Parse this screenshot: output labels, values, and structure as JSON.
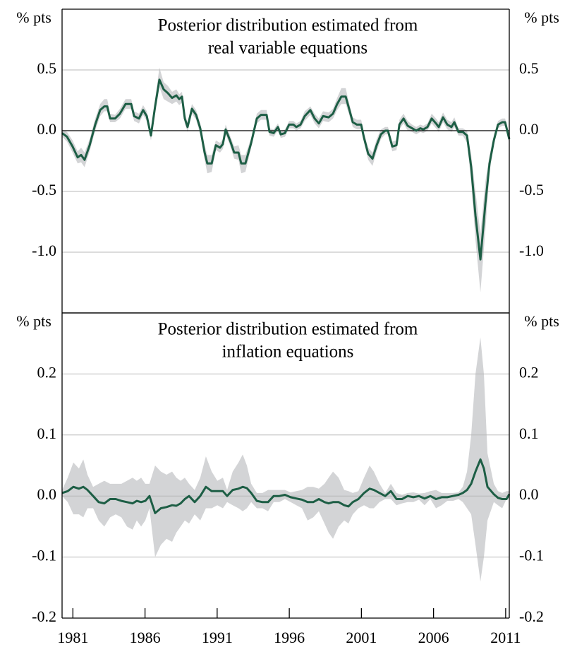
{
  "chart_data": [
    {
      "type": "line",
      "title_lines": [
        "Posterior distribution estimated from",
        "real variable equations"
      ],
      "ylabel": "% pts",
      "xlim": [
        1980.25,
        2011.25
      ],
      "ylim": [
        -1.5,
        1.0
      ],
      "yticks": [
        {
          "value": -1,
          "label": "-1.0"
        },
        -0.5,
        {
          "value": 0,
          "label": "0.0"
        },
        0.5
      ],
      "grid": true,
      "zero_line": true,
      "x": [
        1980.25,
        1980.59,
        1980.98,
        1981.33,
        1981.57,
        1981.81,
        1982.16,
        1982.55,
        1982.89,
        1983.18,
        1983.38,
        1983.58,
        1983.92,
        1984.26,
        1984.65,
        1985.04,
        1985.24,
        1985.58,
        1985.87,
        1986.12,
        1986.41,
        1986.7,
        1987.0,
        1987.29,
        1987.58,
        1987.88,
        1988.17,
        1988.37,
        1988.56,
        1988.76,
        1988.95,
        1989.25,
        1989.54,
        1989.83,
        1990.13,
        1990.32,
        1990.62,
        1990.91,
        1991.2,
        1991.4,
        1991.59,
        1991.89,
        1992.18,
        1992.48,
        1992.67,
        1992.96,
        1993.36,
        1993.75,
        1994.04,
        1994.43,
        1994.63,
        1994.92,
        1995.21,
        1995.41,
        1995.7,
        1995.99,
        1996.29,
        1996.49,
        1996.78,
        1997.07,
        1997.46,
        1997.76,
        1998.05,
        1998.34,
        1998.73,
        1999.03,
        1999.32,
        1999.61,
        1999.91,
        2000.1,
        2000.4,
        2000.69,
        2000.98,
        2001.18,
        2001.47,
        2001.77,
        2002.06,
        2002.35,
        2002.65,
        2002.84,
        2003.14,
        2003.43,
        2003.63,
        2003.92,
        2004.21,
        2004.51,
        2004.8,
        2005.09,
        2005.29,
        2005.58,
        2005.87,
        2006.17,
        2006.36,
        2006.66,
        2006.95,
        2007.24,
        2007.44,
        2007.73,
        2008.03,
        2008.32,
        2008.61,
        2008.91,
        2009.25,
        2009.59,
        2009.88,
        2010.18,
        2010.47,
        2010.76,
        2010.96,
        2011.25
      ],
      "series": [
        {
          "color": "#1d5e45",
          "values": [
            -0.02,
            -0.05,
            -0.13,
            -0.22,
            -0.2,
            -0.24,
            -0.12,
            0.05,
            0.17,
            0.2,
            0.2,
            0.1,
            0.1,
            0.14,
            0.22,
            0.22,
            0.12,
            0.1,
            0.17,
            0.12,
            -0.04,
            0.2,
            0.42,
            0.34,
            0.31,
            0.27,
            0.29,
            0.26,
            0.28,
            0.1,
            0.03,
            0.18,
            0.13,
            0.02,
            -0.18,
            -0.27,
            -0.27,
            -0.12,
            -0.14,
            -0.11,
            0.01,
            -0.08,
            -0.18,
            -0.18,
            -0.27,
            -0.27,
            -0.1,
            0.1,
            0.13,
            0.13,
            -0.01,
            -0.02,
            0.03,
            -0.03,
            -0.02,
            0.05,
            0.05,
            0.03,
            0.05,
            0.12,
            0.17,
            0.1,
            0.06,
            0.12,
            0.11,
            0.14,
            0.22,
            0.28,
            0.28,
            0.2,
            0.07,
            0.05,
            0.05,
            -0.06,
            -0.19,
            -0.23,
            -0.12,
            -0.03,
            0.0,
            0.0,
            -0.13,
            -0.12,
            0.05,
            0.1,
            0.04,
            0.02,
            0.0,
            0.02,
            0.01,
            0.03,
            0.1,
            0.06,
            0.03,
            0.11,
            0.05,
            0.03,
            0.07,
            -0.01,
            -0.01,
            -0.04,
            -0.3,
            -0.7,
            -1.06,
            -0.6,
            -0.27,
            -0.08,
            0.05,
            0.07,
            0.07,
            -0.07
          ],
          "band": {
            "color": "#d3d4d6",
            "lower": [
              -0.05,
              -0.09,
              -0.18,
              -0.27,
              -0.26,
              -0.3,
              -0.17,
              0.0,
              0.12,
              0.16,
              0.16,
              0.07,
              0.07,
              0.1,
              0.18,
              0.18,
              0.08,
              0.06,
              0.13,
              0.08,
              -0.08,
              0.14,
              0.36,
              0.26,
              0.24,
              0.22,
              0.24,
              0.21,
              0.23,
              0.06,
              -0.01,
              0.14,
              0.09,
              -0.03,
              -0.24,
              -0.35,
              -0.34,
              -0.16,
              -0.18,
              -0.15,
              -0.03,
              -0.12,
              -0.23,
              -0.24,
              -0.35,
              -0.34,
              -0.14,
              0.06,
              0.09,
              0.09,
              -0.04,
              -0.05,
              0.0,
              -0.06,
              -0.05,
              0.02,
              0.02,
              0.0,
              0.02,
              0.08,
              0.13,
              0.06,
              0.02,
              0.08,
              0.07,
              0.1,
              0.17,
              0.22,
              0.22,
              0.15,
              0.03,
              0.01,
              0.01,
              -0.1,
              -0.24,
              -0.29,
              -0.17,
              -0.07,
              -0.03,
              -0.03,
              -0.17,
              -0.16,
              0.01,
              0.06,
              0.0,
              -0.01,
              -0.03,
              -0.01,
              -0.02,
              0.0,
              0.06,
              0.02,
              -0.01,
              0.07,
              0.01,
              -0.01,
              0.03,
              -0.04,
              -0.04,
              -0.1,
              -0.42,
              -0.9,
              -1.33,
              -0.82,
              -0.34,
              -0.12,
              0.02,
              0.04,
              0.04,
              -0.1
            ],
            "upper": [
              0.01,
              -0.01,
              -0.08,
              -0.17,
              -0.14,
              -0.18,
              -0.07,
              0.1,
              0.22,
              0.26,
              0.26,
              0.14,
              0.13,
              0.18,
              0.26,
              0.26,
              0.16,
              0.14,
              0.21,
              0.16,
              0.0,
              0.26,
              0.52,
              0.4,
              0.37,
              0.32,
              0.34,
              0.3,
              0.32,
              0.14,
              0.07,
              0.22,
              0.17,
              0.06,
              -0.12,
              -0.2,
              -0.2,
              -0.08,
              -0.1,
              -0.07,
              0.05,
              -0.04,
              -0.13,
              -0.12,
              -0.2,
              -0.2,
              -0.06,
              0.14,
              0.17,
              0.17,
              0.02,
              0.01,
              0.06,
              0.0,
              0.01,
              0.08,
              0.08,
              0.06,
              0.08,
              0.16,
              0.2,
              0.14,
              0.1,
              0.16,
              0.15,
              0.18,
              0.27,
              0.35,
              0.35,
              0.25,
              0.11,
              0.09,
              0.09,
              -0.02,
              -0.14,
              -0.18,
              -0.07,
              0.01,
              0.03,
              0.03,
              -0.09,
              -0.08,
              0.09,
              0.14,
              0.08,
              0.05,
              0.03,
              0.05,
              0.04,
              0.06,
              0.14,
              0.1,
              0.07,
              0.15,
              0.09,
              0.07,
              0.11,
              0.02,
              0.02,
              0.0,
              -0.2,
              -0.5,
              -0.85,
              -0.42,
              -0.2,
              -0.04,
              0.08,
              0.1,
              0.1,
              -0.04
            ]
          }
        }
      ]
    },
    {
      "type": "line",
      "title_lines": [
        "Posterior distribution estimated from",
        "inflation equations"
      ],
      "ylabel": "% pts",
      "xlim": [
        1980.25,
        2011.25
      ],
      "ylim": [
        -0.2,
        0.3
      ],
      "yticks": [
        -0.2,
        -0.1,
        {
          "value": 0,
          "label": "0.0"
        },
        0.1,
        0.2
      ],
      "xticks": [
        1981,
        1986,
        1991,
        1996,
        2001,
        2006,
        2011
      ],
      "grid": true,
      "zero_line": false,
      "x": [
        1980.25,
        1980.64,
        1981.03,
        1981.42,
        1981.72,
        1982.01,
        1982.4,
        1982.79,
        1983.18,
        1983.58,
        1983.97,
        1984.36,
        1984.75,
        1985.14,
        1985.43,
        1985.73,
        1986.02,
        1986.31,
        1986.7,
        1987.1,
        1987.49,
        1987.88,
        1988.17,
        1988.47,
        1988.76,
        1989.05,
        1989.44,
        1989.83,
        1990.22,
        1990.62,
        1991.01,
        1991.4,
        1991.69,
        1992.08,
        1992.48,
        1992.77,
        1993.06,
        1993.36,
        1993.75,
        1994.14,
        1994.53,
        1994.92,
        1995.31,
        1995.7,
        1996.09,
        1996.49,
        1996.88,
        1997.27,
        1997.66,
        1998.05,
        1998.44,
        1998.73,
        1999.03,
        1999.42,
        1999.81,
        2000.1,
        2000.4,
        2000.79,
        2001.18,
        2001.57,
        2001.86,
        2002.26,
        2002.65,
        2003.04,
        2003.43,
        2003.82,
        2004.21,
        2004.6,
        2004.99,
        2005.38,
        2005.78,
        2006.17,
        2006.56,
        2006.95,
        2007.34,
        2007.73,
        2008.03,
        2008.32,
        2008.61,
        2008.91,
        2009.25,
        2009.49,
        2009.74,
        2010.18,
        2010.47,
        2010.76,
        2011.06,
        2011.25
      ],
      "series": [
        {
          "color": "#1d5e45",
          "values": [
            0.005,
            0.008,
            0.015,
            0.012,
            0.015,
            0.01,
            0.0,
            -0.01,
            -0.012,
            -0.005,
            -0.005,
            -0.008,
            -0.01,
            -0.012,
            -0.008,
            -0.01,
            -0.008,
            0.0,
            -0.028,
            -0.02,
            -0.018,
            -0.015,
            -0.016,
            -0.012,
            -0.005,
            0.0,
            -0.01,
            0.0,
            0.015,
            0.008,
            0.008,
            0.008,
            0.0,
            0.01,
            0.012,
            0.015,
            0.013,
            0.005,
            -0.008,
            -0.01,
            -0.01,
            0.0,
            0.0,
            0.002,
            -0.002,
            -0.004,
            -0.006,
            -0.01,
            -0.01,
            -0.005,
            -0.01,
            -0.012,
            -0.01,
            -0.01,
            -0.015,
            -0.017,
            -0.01,
            -0.005,
            0.005,
            0.012,
            0.01,
            0.005,
            0.0,
            0.008,
            -0.005,
            -0.005,
            0.0,
            -0.002,
            0.0,
            -0.004,
            0.0,
            -0.005,
            -0.002,
            -0.002,
            0.0,
            0.002,
            0.005,
            0.01,
            0.02,
            0.04,
            0.06,
            0.045,
            0.015,
            0.003,
            -0.003,
            -0.005,
            -0.005,
            0.003
          ],
          "band": {
            "color": "#d3d4d6",
            "lower": [
              0.0,
              -0.01,
              -0.03,
              -0.03,
              -0.035,
              -0.02,
              -0.02,
              -0.04,
              -0.05,
              -0.035,
              -0.03,
              -0.035,
              -0.05,
              -0.055,
              -0.04,
              -0.05,
              -0.04,
              -0.02,
              -0.1,
              -0.08,
              -0.07,
              -0.075,
              -0.06,
              -0.05,
              -0.04,
              -0.045,
              -0.03,
              -0.04,
              -0.02,
              -0.02,
              -0.015,
              -0.02,
              -0.01,
              -0.015,
              -0.02,
              -0.025,
              -0.02,
              -0.01,
              -0.02,
              -0.02,
              -0.025,
              -0.01,
              -0.01,
              -0.005,
              -0.01,
              -0.015,
              -0.02,
              -0.04,
              -0.035,
              -0.025,
              -0.045,
              -0.06,
              -0.07,
              -0.05,
              -0.04,
              -0.045,
              -0.03,
              -0.02,
              -0.015,
              -0.02,
              -0.02,
              -0.01,
              -0.005,
              -0.005,
              -0.015,
              -0.012,
              -0.01,
              -0.01,
              -0.006,
              -0.015,
              -0.005,
              -0.02,
              -0.015,
              -0.008,
              -0.008,
              -0.005,
              -0.01,
              -0.02,
              -0.03,
              -0.08,
              -0.14,
              -0.1,
              -0.04,
              -0.01,
              -0.015,
              -0.02,
              -0.005,
              0.0
            ],
            "upper": [
              0.01,
              0.03,
              0.055,
              0.045,
              0.06,
              0.035,
              0.015,
              0.02,
              0.025,
              0.02,
              0.02,
              0.02,
              0.025,
              0.03,
              0.025,
              0.03,
              0.02,
              0.02,
              0.05,
              0.04,
              0.035,
              0.04,
              0.03,
              0.025,
              0.03,
              0.02,
              0.01,
              0.03,
              0.065,
              0.04,
              0.025,
              0.03,
              0.01,
              0.04,
              0.055,
              0.068,
              0.05,
              0.02,
              0.005,
              0.005,
              0.01,
              0.01,
              0.01,
              0.01,
              0.006,
              0.008,
              0.01,
              0.015,
              0.015,
              0.012,
              0.02,
              0.03,
              0.04,
              0.03,
              0.01,
              0.008,
              0.005,
              0.008,
              0.03,
              0.05,
              0.04,
              0.02,
              0.005,
              0.02,
              0.005,
              0.002,
              0.005,
              0.006,
              0.004,
              0.005,
              0.008,
              0.01,
              0.005,
              0.005,
              0.005,
              0.006,
              0.015,
              0.04,
              0.1,
              0.2,
              0.26,
              0.2,
              0.07,
              0.02,
              0.008,
              0.005,
              0.008,
              0.008
            ]
          }
        }
      ]
    }
  ]
}
